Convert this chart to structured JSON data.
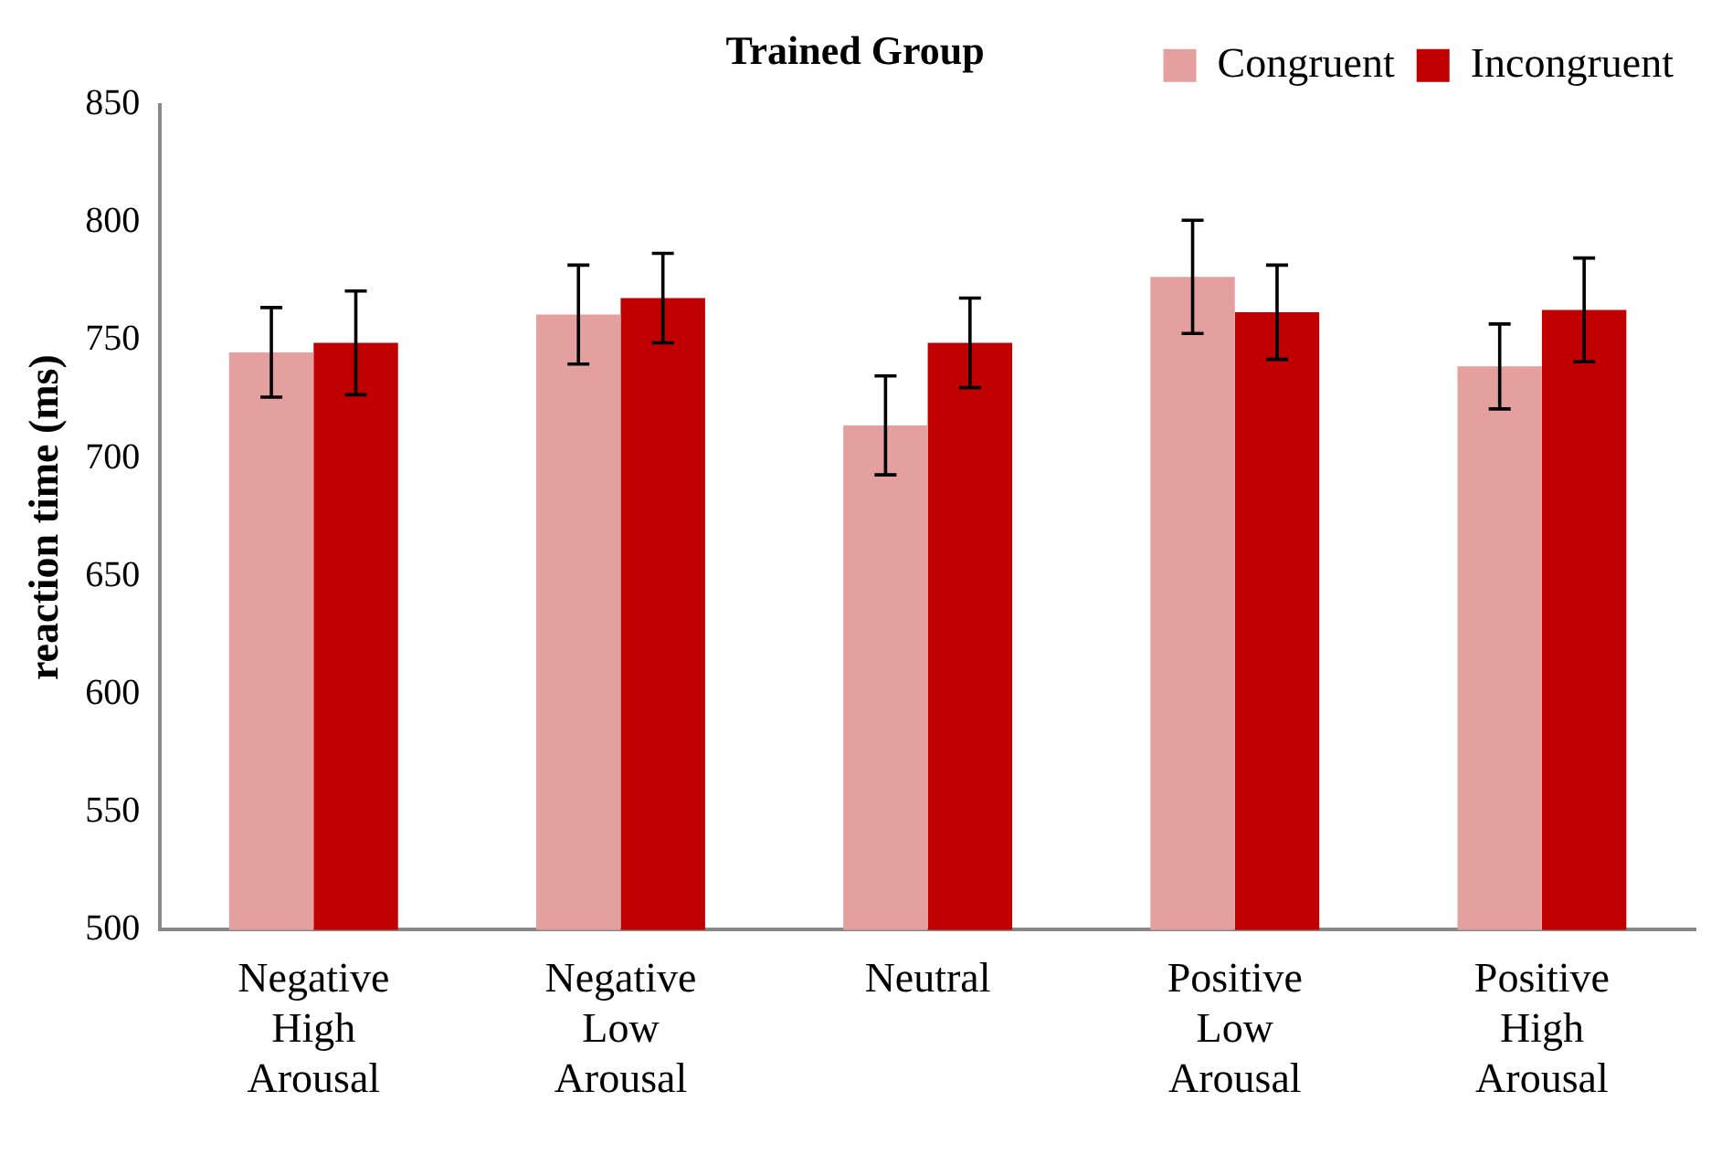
{
  "chart_data": {
    "type": "bar",
    "title": "Trained Group",
    "ylabel": "reaction time (ms)",
    "categories": [
      "Negative High Arousal",
      "Negative Low Arousal",
      "Neutral",
      "Positive Low Arousal",
      "Positive High Arousal"
    ],
    "series": [
      {
        "name": "Congruent",
        "color": "#e3a09e",
        "values": [
          745,
          761,
          714,
          777,
          739
        ],
        "errors": [
          19,
          21,
          21,
          24,
          18
        ]
      },
      {
        "name": "Incongruent",
        "color": "#c00000",
        "values": [
          749,
          768,
          749,
          762,
          763
        ],
        "errors": [
          22,
          19,
          19,
          20,
          22
        ]
      }
    ],
    "ylim": [
      500,
      850
    ],
    "yticks": [
      500,
      550,
      600,
      650,
      700,
      750,
      800,
      850
    ],
    "grid": false,
    "legend": "top right"
  }
}
